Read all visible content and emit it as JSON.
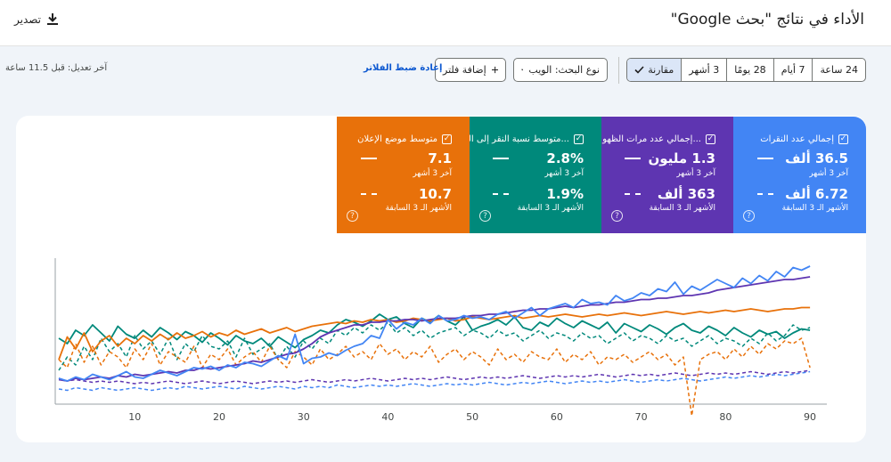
{
  "header": {
    "title": "الأداء في نتائج \"بحث Google\"",
    "export_label": "تصدير",
    "export_icon": "download-icon"
  },
  "filters": {
    "date_ranges": [
      {
        "label": "24 ساعة",
        "active": false
      },
      {
        "label": "7 أيام",
        "active": false
      },
      {
        "label": "28 يومًا",
        "active": false
      },
      {
        "label": "3 أشهر",
        "active": false
      },
      {
        "label": "مقارنة",
        "active": true
      }
    ],
    "search_type": "نوع البحث: الويب",
    "add_filter": "إضافة فلتر",
    "reset": "إعادة ضبط الفلاتر",
    "last_updated": "آخر تعديل: قبل 11.5 ساعة"
  },
  "metrics": [
    {
      "label": "إجمالي عدد النقرات",
      "value": "36.5 ألف",
      "value_label": "آخر 3 أشهر",
      "prev_value": "6.72 ألف",
      "prev_label": "الأشهر الـ 3 السابقة",
      "color": "#4285f4"
    },
    {
      "label": "إجمالي عدد مرات الظهو...",
      "value": "1.3 مليون",
      "value_label": "آخر 3 أشهر",
      "prev_value": "363 ألف",
      "prev_label": "الأشهر الـ 3 السابقة",
      "color": "#5e35b1"
    },
    {
      "label": "متوسط نسبة النقر إلى الـ...",
      "value": "2.8%",
      "value_label": "آخر 3 أشهر",
      "prev_value": "1.9%",
      "prev_label": "الأشهر الـ 3 السابقة",
      "color": "#00897b"
    },
    {
      "label": "متوسط موضع الإعلان",
      "value": "7.1",
      "value_label": "آخر 3 أشهر",
      "prev_value": "10.7",
      "prev_label": "الأشهر الـ 3 السابقة",
      "color": "#e8710a"
    }
  ],
  "chart_data": {
    "type": "line",
    "x_ticks": [
      "10",
      "20",
      "30",
      "40",
      "50",
      "60",
      "70",
      "80",
      "90"
    ],
    "xlim": [
      1,
      92
    ],
    "ylim": [
      0,
      100
    ],
    "series": [
      {
        "color": "#4285f4",
        "dashed": false,
        "values": [
          14,
          12,
          15,
          13,
          17,
          15,
          13,
          16,
          19,
          15,
          14,
          17,
          20,
          18,
          16,
          19,
          22,
          21,
          23,
          20,
          24,
          22,
          26,
          25,
          23,
          27,
          31,
          28,
          47,
          25,
          29,
          30,
          33,
          31,
          35,
          38,
          40,
          46,
          44,
          58,
          51,
          56,
          54,
          59,
          55,
          61,
          57,
          58,
          61,
          59,
          60,
          58,
          62,
          64,
          59,
          63,
          67,
          61,
          66,
          68,
          70,
          67,
          73,
          70,
          71,
          69,
          76,
          72,
          74,
          78,
          76,
          81,
          79,
          86,
          77,
          83,
          80,
          84,
          88,
          85,
          82,
          89,
          85,
          91,
          87,
          94,
          90,
          97,
          95,
          98
        ]
      },
      {
        "color": "#5e35b1",
        "dashed": false,
        "values": [
          13,
          12,
          14,
          13,
          14,
          15,
          14,
          16,
          15,
          17,
          16,
          17,
          18,
          19,
          18,
          20,
          20,
          22,
          21,
          22,
          23,
          24,
          25,
          27,
          26,
          28,
          30,
          32,
          33,
          36,
          40,
          45,
          48,
          50,
          52,
          54,
          54,
          56,
          56,
          57,
          57,
          58,
          58,
          57,
          58,
          59,
          59,
          59,
          60,
          61,
          61,
          62,
          62,
          63,
          64,
          65,
          65,
          66,
          66,
          67,
          68,
          67,
          68,
          69,
          69,
          70,
          71,
          71,
          72,
          73,
          73,
          74,
          74,
          75,
          76,
          76,
          77,
          78,
          80,
          81,
          82,
          83,
          84,
          85,
          86,
          87,
          88,
          88,
          89,
          90
        ]
      },
      {
        "color": "#00897b",
        "dashed": false,
        "values": [
          44,
          40,
          50,
          46,
          54,
          48,
          42,
          53,
          47,
          44,
          50,
          45,
          52,
          48,
          43,
          49,
          46,
          41,
          48,
          44,
          39,
          46,
          42,
          40,
          44,
          38,
          45,
          41,
          37,
          43,
          46,
          50,
          48,
          54,
          58,
          56,
          53,
          57,
          62,
          58,
          60,
          55,
          52,
          59,
          56,
          61,
          57,
          54,
          60,
          50,
          53,
          55,
          58,
          54,
          60,
          52,
          50,
          56,
          53,
          59,
          55,
          52,
          57,
          54,
          51,
          56,
          48,
          55,
          52,
          49,
          54,
          51,
          47,
          52,
          55,
          50,
          48,
          53,
          50,
          46,
          52,
          48,
          45,
          50,
          47,
          49,
          44,
          48,
          51,
          50
        ]
      },
      {
        "color": "#e8710a",
        "dashed": false,
        "values": [
          28,
          45,
          36,
          48,
          34,
          42,
          46,
          38,
          44,
          40,
          46,
          42,
          47,
          43,
          48,
          44,
          46,
          49,
          45,
          48,
          46,
          50,
          47,
          49,
          51,
          48,
          50,
          52,
          49,
          51,
          53,
          54,
          55,
          56,
          55,
          57,
          56,
          58,
          57,
          58,
          56,
          57,
          59,
          58,
          57,
          58,
          59,
          57,
          58,
          60,
          59,
          58,
          59,
          60,
          61,
          59,
          60,
          61,
          60,
          61,
          62,
          61,
          60,
          61,
          62,
          61,
          62,
          63,
          62,
          61,
          62,
          63,
          64,
          63,
          62,
          63,
          64,
          63,
          64,
          65,
          64,
          65,
          66,
          65,
          64,
          65,
          66,
          66,
          67,
          67
        ]
      },
      {
        "color": "#4285f4",
        "dashed": true,
        "values": [
          6,
          5,
          7,
          6,
          5,
          7,
          6,
          5,
          6,
          7,
          6,
          5,
          6,
          7,
          6,
          8,
          7,
          6,
          7,
          8,
          7,
          6,
          8,
          7,
          6,
          7,
          8,
          7,
          6,
          8,
          7,
          8,
          7,
          9,
          8,
          7,
          8,
          9,
          8,
          9,
          8,
          9,
          10,
          9,
          8,
          9,
          10,
          9,
          10,
          9,
          10,
          11,
          10,
          9,
          10,
          11,
          10,
          11,
          12,
          11,
          10,
          11,
          12,
          11,
          12,
          11,
          12,
          13,
          12,
          11,
          12,
          13,
          12,
          13,
          14,
          13,
          12,
          13,
          14,
          15,
          14,
          15,
          16,
          15,
          16,
          17,
          16,
          17,
          18,
          19
        ]
      },
      {
        "color": "#5e35b1",
        "dashed": true,
        "values": [
          14,
          12,
          13,
          12,
          11,
          12,
          11,
          12,
          11,
          10,
          11,
          10,
          11,
          12,
          11,
          10,
          11,
          12,
          11,
          10,
          11,
          12,
          11,
          10,
          11,
          12,
          11,
          12,
          11,
          12,
          13,
          12,
          11,
          12,
          13,
          12,
          13,
          14,
          13,
          12,
          13,
          14,
          13,
          14,
          13,
          14,
          15,
          14,
          13,
          14,
          15,
          14,
          15,
          14,
          15,
          16,
          15,
          14,
          15,
          16,
          15,
          16,
          15,
          16,
          17,
          16,
          15,
          16,
          17,
          16,
          17,
          16,
          17,
          18,
          17,
          16,
          17,
          18,
          17,
          18,
          17,
          18,
          19,
          18,
          17,
          18,
          19,
          18,
          19,
          20
        ]
      },
      {
        "color": "#00897b",
        "dashed": true,
        "values": [
          20,
          30,
          24,
          38,
          28,
          44,
          34,
          40,
          30,
          46,
          36,
          42,
          32,
          44,
          28,
          40,
          34,
          46,
          38,
          36,
          42,
          30,
          44,
          32,
          36,
          40,
          28,
          38,
          30,
          42,
          36,
          44,
          40,
          50,
          46,
          52,
          48,
          54,
          50,
          56,
          48,
          52,
          46,
          50,
          44,
          48,
          50,
          52,
          46,
          50,
          48,
          44,
          50,
          46,
          48,
          42,
          46,
          50,
          44,
          48,
          46,
          42,
          48,
          44,
          46,
          40,
          44,
          48,
          42,
          46,
          44,
          40,
          46,
          42,
          44,
          38,
          42,
          46,
          40,
          44,
          42,
          38,
          44,
          40,
          48,
          42,
          46,
          54,
          50,
          52
        ]
      },
      {
        "color": "#e8710a",
        "dashed": true,
        "values": [
          28,
          22,
          40,
          26,
          38,
          24,
          34,
          30,
          22,
          36,
          28,
          40,
          24,
          34,
          30,
          26,
          38,
          22,
          32,
          28,
          36,
          24,
          30,
          34,
          26,
          38,
          28,
          22,
          34,
          30,
          24,
          36,
          28,
          32,
          38,
          30,
          34,
          28,
          40,
          32,
          36,
          28,
          34,
          30,
          38,
          26,
          32,
          36,
          28,
          34,
          30,
          24,
          36,
          28,
          32,
          26,
          34,
          30,
          28,
          36,
          26,
          32,
          28,
          34,
          24,
          30,
          28,
          32,
          26,
          30,
          34,
          28,
          32,
          24,
          30,
          -14,
          28,
          32,
          34,
          28,
          36,
          30,
          38,
          32,
          40,
          36,
          42,
          40,
          44,
          22
        ]
      }
    ]
  }
}
